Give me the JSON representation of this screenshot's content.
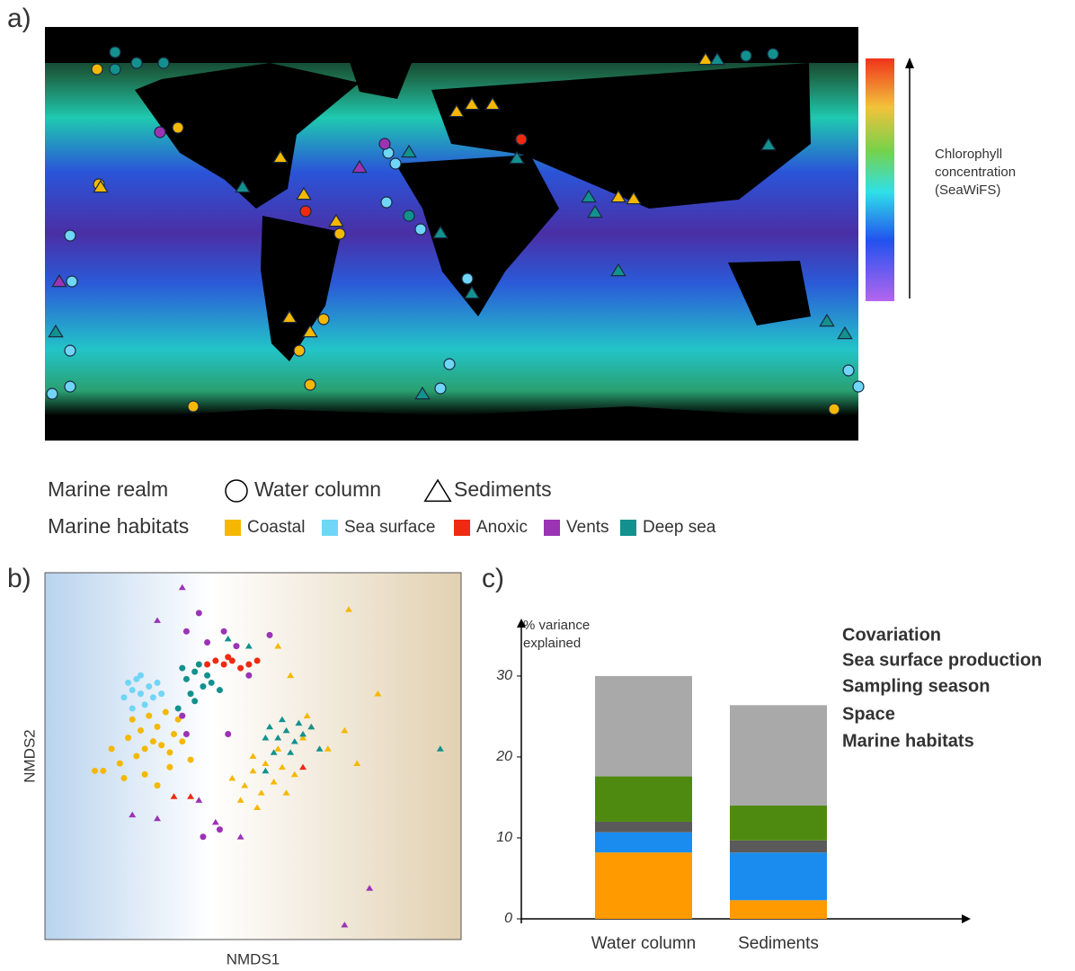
{
  "panel_labels": [
    "a)",
    "b)",
    "c)"
  ],
  "map": {
    "colorbar_label": "Chlorophyll concentration (SeaWiFS)"
  },
  "legend": {
    "realm_title": "Marine realm",
    "realms": [
      {
        "label": "Water column",
        "marker": "circle"
      },
      {
        "label": "Sediments",
        "marker": "triangle"
      }
    ],
    "habitat_title": "Marine habitats",
    "habitats": [
      {
        "label": "Coastal",
        "color": "#f5b800"
      },
      {
        "label": "Sea surface",
        "color": "#6fd6f7"
      },
      {
        "label": "Anoxic",
        "color": "#ee2a10"
      },
      {
        "label": "Vents",
        "color": "#9b33b5"
      },
      {
        "label": "Deep sea",
        "color": "#13918e"
      }
    ]
  },
  "chart_data": [
    {
      "type": "scatter",
      "x_label": "NMDS1",
      "y_label": "NMDS2",
      "xlim": [
        0,
        100
      ],
      "ylim": [
        0,
        100
      ],
      "series": [
        {
          "color": "#f5b800",
          "marker": "circle",
          "x": [
            14,
            18,
            22,
            24,
            26,
            28,
            30,
            20,
            23,
            27,
            31,
            33,
            21,
            25,
            29,
            32,
            16,
            12,
            19,
            35,
            24,
            30,
            27
          ],
          "y": [
            46,
            48,
            50,
            52,
            54,
            53,
            51,
            55,
            57,
            58,
            56,
            54,
            60,
            61,
            62,
            60,
            52,
            46,
            44,
            49,
            45,
            47,
            42
          ]
        },
        {
          "color": "#f5b800",
          "marker": "triangle",
          "x": [
            45,
            48,
            50,
            52,
            55,
            53,
            57,
            50,
            47,
            58,
            60,
            62,
            64,
            72,
            75,
            68,
            51,
            56,
            63,
            59,
            56,
            73,
            80
          ],
          "y": [
            44,
            42,
            46,
            40,
            43,
            48,
            47,
            50,
            38,
            40,
            45,
            55,
            58,
            57,
            48,
            52,
            36,
            52,
            61,
            72,
            80,
            90,
            67
          ]
        },
        {
          "color": "#6fd6f7",
          "marker": "circle",
          "x": [
            19,
            21,
            23,
            25,
            20,
            22,
            26,
            24,
            28,
            27,
            21,
            23
          ],
          "y": [
            66,
            68,
            67,
            69,
            70,
            71,
            66,
            64,
            67,
            70,
            63,
            72
          ]
        },
        {
          "color": "#ee2a10",
          "marker": "circle",
          "x": [
            39,
            41,
            43,
            45,
            47,
            49,
            51,
            44
          ],
          "y": [
            75,
            76,
            75,
            76,
            74,
            75,
            76,
            77
          ]
        },
        {
          "color": "#ee2a10",
          "marker": "triangle",
          "x": [
            31,
            35,
            62
          ],
          "y": [
            39,
            39,
            47
          ]
        },
        {
          "color": "#9b33b5",
          "marker": "circle",
          "x": [
            37,
            46,
            43,
            39,
            34,
            33,
            34,
            38,
            42,
            54,
            49,
            44
          ],
          "y": [
            89,
            80,
            84,
            81,
            84,
            61,
            56,
            28,
            30,
            83,
            72,
            56
          ]
        },
        {
          "color": "#9b33b5",
          "marker": "triangle",
          "x": [
            33,
            27,
            21,
            27,
            37,
            47,
            78,
            72,
            41
          ],
          "y": [
            96,
            87,
            34,
            33,
            38,
            28,
            14,
            4,
            32
          ]
        },
        {
          "color": "#13918e",
          "marker": "circle",
          "x": [
            34,
            36,
            38,
            35,
            37,
            39,
            33,
            36,
            40,
            42,
            32
          ],
          "y": [
            71,
            73,
            69,
            67,
            75,
            72,
            74,
            65,
            70,
            68,
            63
          ]
        },
        {
          "color": "#13918e",
          "marker": "triangle",
          "x": [
            54,
            56,
            58,
            60,
            62,
            55,
            59,
            57,
            61,
            64,
            53,
            44,
            49,
            66,
            95,
            53
          ],
          "y": [
            58,
            55,
            57,
            54,
            56,
            51,
            51,
            60,
            59,
            58,
            55,
            82,
            80,
            52,
            52,
            46
          ]
        }
      ]
    },
    {
      "type": "bar",
      "stacked": true,
      "y_label": "% variance explained",
      "categories": [
        "Water column",
        "Sediments"
      ],
      "ylim": [
        0,
        37.1
      ],
      "yticks": [
        0,
        10,
        20,
        30
      ],
      "series": [
        {
          "name": "Marine habitats",
          "color": "#ff9a00",
          "values": [
            8.2,
            2.3
          ]
        },
        {
          "name": "Space",
          "color": "#1a8cf0",
          "values": [
            2.5,
            5.9
          ]
        },
        {
          "name": "Sampling season",
          "color": "#5a5a5a",
          "values": [
            1.3,
            1.5
          ]
        },
        {
          "name": "Sea surface production",
          "color": "#4f8a10",
          "values": [
            5.6,
            4.3
          ]
        },
        {
          "name": "Covariation",
          "color": "#a9a9a9",
          "values": [
            12.4,
            12.4
          ]
        }
      ]
    }
  ]
}
